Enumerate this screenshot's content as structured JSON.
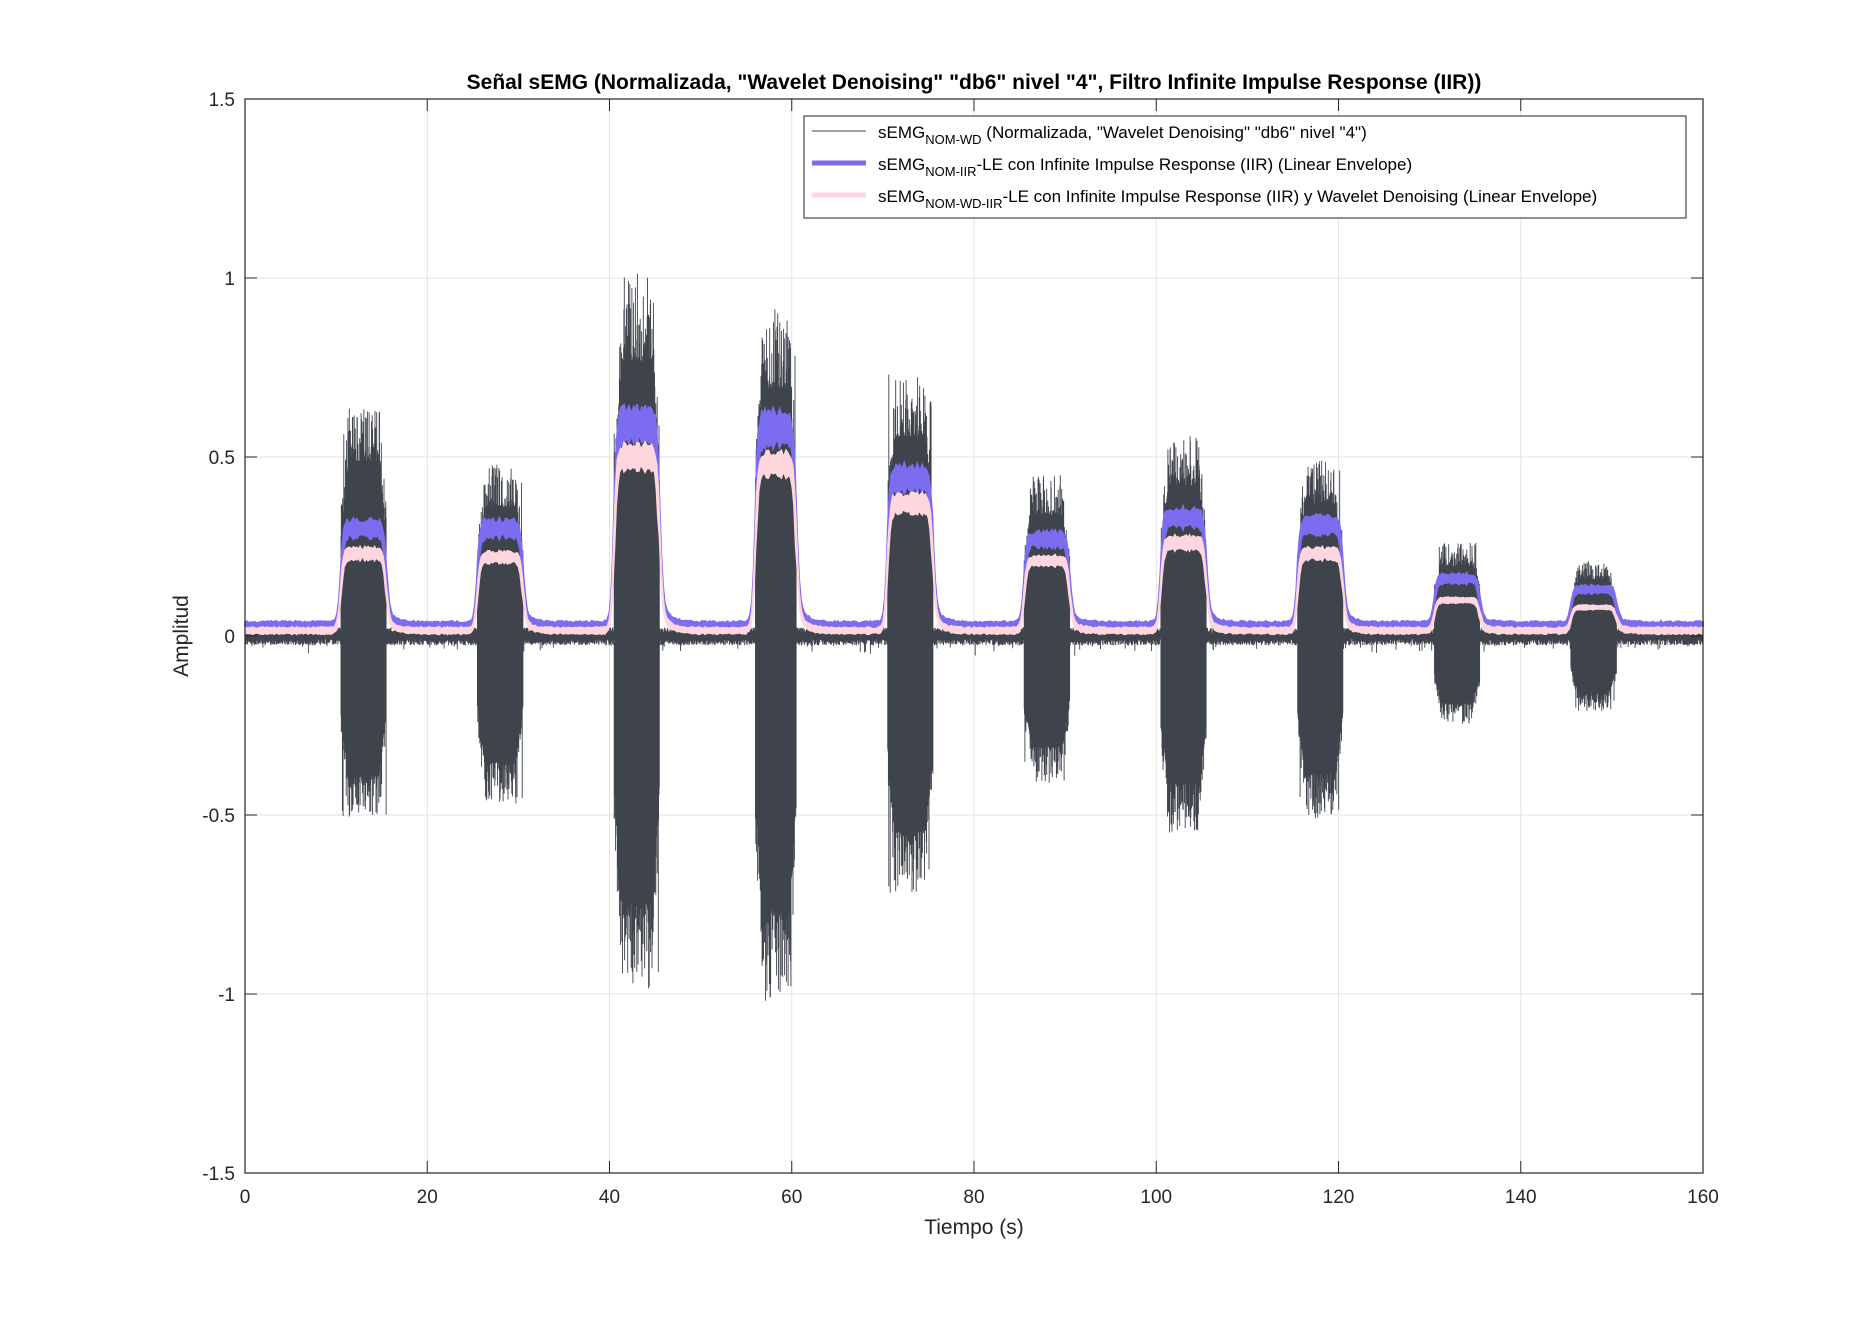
{
  "chart_data": {
    "type": "line",
    "title": "Señal sEMG (Normalizada, \"Wavelet Denoising\" \"db6\" nivel \"4\", Filtro Infinite Impulse Response (IIR))",
    "xlabel": "Tiempo (s)",
    "ylabel": "Amplitud",
    "xlim": [
      0,
      160
    ],
    "ylim": [
      -1.5,
      1.5
    ],
    "xticks": [
      0,
      20,
      40,
      60,
      80,
      100,
      120,
      140,
      160
    ],
    "yticks": [
      -1.5,
      -1,
      -0.5,
      0,
      0.5,
      1,
      1.5
    ],
    "xtick_labels": [
      "0",
      "20",
      "40",
      "60",
      "80",
      "100",
      "120",
      "140",
      "160"
    ],
    "ytick_labels": [
      "-1.5",
      "-1",
      "-0.5",
      "0",
      "0.5",
      "1",
      "1.5"
    ],
    "grid": true,
    "legend_position": "top-right",
    "bursts": [
      {
        "start": 10.5,
        "end": 15.5,
        "max": 0.65,
        "min": -0.52,
        "env_iir": 0.3,
        "env_wd_iir": 0.23
      },
      {
        "start": 25.5,
        "end": 30.5,
        "max": 0.48,
        "min": -0.47,
        "env_iir": 0.3,
        "env_wd_iir": 0.22
      },
      {
        "start": 40.5,
        "end": 45.5,
        "max": 1.02,
        "min": -0.99,
        "env_iir": 0.59,
        "env_wd_iir": 0.5
      },
      {
        "start": 56.0,
        "end": 60.5,
        "max": 0.92,
        "min": -1.02,
        "env_iir": 0.58,
        "env_wd_iir": 0.48
      },
      {
        "start": 70.5,
        "end": 75.5,
        "max": 0.74,
        "min": -0.72,
        "env_iir": 0.44,
        "env_wd_iir": 0.37
      },
      {
        "start": 85.5,
        "end": 90.5,
        "max": 0.45,
        "min": -0.41,
        "env_iir": 0.27,
        "env_wd_iir": 0.21
      },
      {
        "start": 100.5,
        "end": 105.5,
        "max": 0.56,
        "min": -0.55,
        "env_iir": 0.33,
        "env_wd_iir": 0.26
      },
      {
        "start": 115.5,
        "end": 120.5,
        "max": 0.49,
        "min": -0.51,
        "env_iir": 0.31,
        "env_wd_iir": 0.23
      },
      {
        "start": 130.5,
        "end": 135.5,
        "max": 0.26,
        "min": -0.25,
        "env_iir": 0.16,
        "env_wd_iir": 0.1
      },
      {
        "start": 145.5,
        "end": 150.5,
        "max": 0.21,
        "min": -0.21,
        "env_iir": 0.13,
        "env_wd_iir": 0.08
      }
    ],
    "baseline": {
      "raw_amplitude": 0.02,
      "env_iir": 0.03,
      "env_wd_iir": 0.015
    },
    "series": [
      {
        "name": "sEMG",
        "subscript": "NOM-WD",
        "suffix": " (Normalizada, \"Wavelet Denoising\" \"db6\" nivel \"4\")",
        "color": "#3f434b",
        "kind": "raw"
      },
      {
        "name": "sEMG",
        "subscript": "NOM-IIR",
        "suffix": "-LE con Infinite Impulse Response (IIR) (Linear Envelope)",
        "color": "#7b6cf0",
        "kind": "envelope_iir"
      },
      {
        "name": "sEMG",
        "subscript": "NOM-WD-IIR",
        "suffix": "-LE con Infinite Impulse Response (IIR) y Wavelet Denoising (Linear Envelope)",
        "color": "#ffd6dd",
        "kind": "envelope_wd_iir"
      }
    ]
  }
}
